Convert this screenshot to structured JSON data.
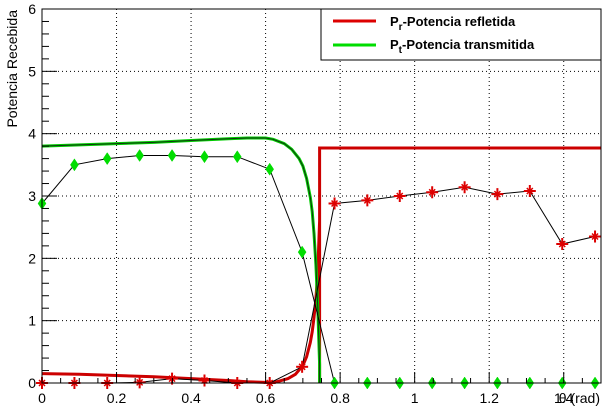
{
  "chart_data": {
    "type": "line",
    "xlabel": "θ (rad)",
    "ylabel": "Potencia Recebida",
    "xlim": [
      0,
      1.5
    ],
    "ylim": [
      0,
      6
    ],
    "grid": true,
    "x_ticks": [
      0,
      0.2,
      0.4,
      0.6,
      0.8,
      1,
      1.2,
      1.4
    ],
    "y_ticks": [
      0,
      1,
      2,
      3,
      4,
      5,
      6
    ],
    "legend_position": "top-right",
    "legend": [
      {
        "base": "P",
        "sub": "r",
        "rest": "-Potencia refletida",
        "color": "#dd0000"
      },
      {
        "base": "P",
        "sub": "t",
        "rest": "-Potencia transmitida",
        "color": "#00dd00"
      }
    ],
    "series": [
      {
        "key": "reflected_theory",
        "style": "line",
        "color": "#cc0000",
        "x": [
          0,
          0.1,
          0.2,
          0.3,
          0.4,
          0.5,
          0.55,
          0.6,
          0.63,
          0.66,
          0.68,
          0.7,
          0.71,
          0.72,
          0.725,
          0.73,
          0.735,
          0.74,
          0.745,
          0.745,
          0.745,
          1.5
        ],
        "y": [
          0.15,
          0.14,
          0.12,
          0.1,
          0.07,
          0.04,
          0.02,
          0.01,
          0.02,
          0.07,
          0.14,
          0.28,
          0.42,
          0.65,
          0.82,
          1.05,
          1.35,
          1.8,
          2.6,
          0.0,
          3.77,
          3.77
        ]
      },
      {
        "key": "transmitted_theory",
        "style": "line",
        "color": "#00cc00",
        "x": [
          0,
          0.1,
          0.2,
          0.3,
          0.4,
          0.5,
          0.55,
          0.6,
          0.62,
          0.65,
          0.67,
          0.69,
          0.7,
          0.71,
          0.72,
          0.725,
          0.73,
          0.735,
          0.74,
          0.745,
          0.745
        ],
        "y": [
          3.8,
          3.82,
          3.84,
          3.86,
          3.89,
          3.92,
          3.93,
          3.93,
          3.91,
          3.84,
          3.75,
          3.6,
          3.48,
          3.28,
          2.98,
          2.75,
          2.4,
          1.9,
          1.2,
          0.3,
          0.0
        ]
      },
      {
        "key": "reflected_measured",
        "style": "markers",
        "marker": "star",
        "color": "#dd0000",
        "x": [
          0,
          0.087,
          0.175,
          0.262,
          0.349,
          0.436,
          0.524,
          0.611,
          0.698,
          0.785,
          0.873,
          0.96,
          1.047,
          1.134,
          1.222,
          1.309,
          1.396,
          1.484
        ],
        "y": [
          0.0,
          0.0,
          0.0,
          0.01,
          0.07,
          0.04,
          0.0,
          0.0,
          0.26,
          2.88,
          2.93,
          3.0,
          3.06,
          3.14,
          3.03,
          3.08,
          2.23,
          2.35
        ]
      },
      {
        "key": "transmitted_measured",
        "style": "markers",
        "marker": "diamond",
        "color": "#00dd00",
        "x": [
          0,
          0.087,
          0.175,
          0.262,
          0.349,
          0.436,
          0.524,
          0.611,
          0.698,
          0.785,
          0.873,
          0.96,
          1.047,
          1.134,
          1.222,
          1.309,
          1.396,
          1.484
        ],
        "y": [
          2.88,
          3.5,
          3.6,
          3.65,
          3.65,
          3.63,
          3.63,
          3.43,
          2.1,
          0.0,
          0.0,
          0.0,
          0.0,
          0.0,
          0.0,
          0.0,
          0.0,
          0.0
        ]
      }
    ]
  }
}
